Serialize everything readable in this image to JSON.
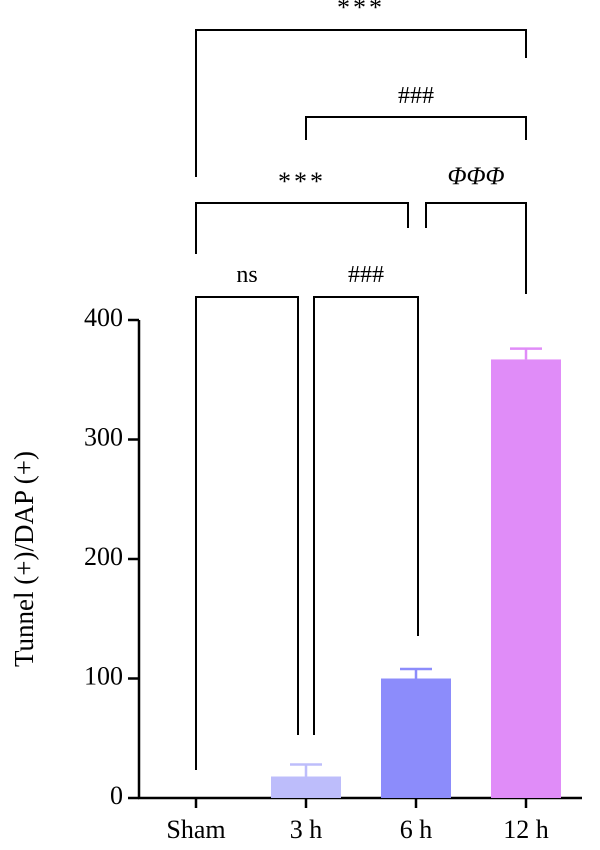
{
  "chart_data": {
    "type": "bar",
    "categories": [
      "Sham",
      "3 h",
      "6 h",
      "12 h"
    ],
    "values": [
      0,
      18,
      100,
      367
    ],
    "errors": [
      0,
      10,
      8,
      9
    ],
    "colors": [
      "#ffffff",
      "#bdbdfb",
      "#8c8cfb",
      "#e08cf8"
    ],
    "ylabel": "Tunnel (+)/DAP (+)",
    "xlabel": "",
    "ylim": [
      0,
      400
    ],
    "yticks": [
      0,
      100,
      200,
      300,
      400
    ],
    "significance": [
      {
        "label": "ns",
        "from": "Sham",
        "to": "3 h"
      },
      {
        "label": "###",
        "from": "3 h",
        "to": "6 h"
      },
      {
        "label": "***",
        "from": "Sham",
        "to": "6 h"
      },
      {
        "label": "ΦΦΦ",
        "from": "6 h",
        "to": "12 h"
      },
      {
        "label": "###",
        "from": "3 h",
        "to": "12 h"
      },
      {
        "label": "***",
        "from": "Sham",
        "to": "12 h"
      }
    ]
  }
}
